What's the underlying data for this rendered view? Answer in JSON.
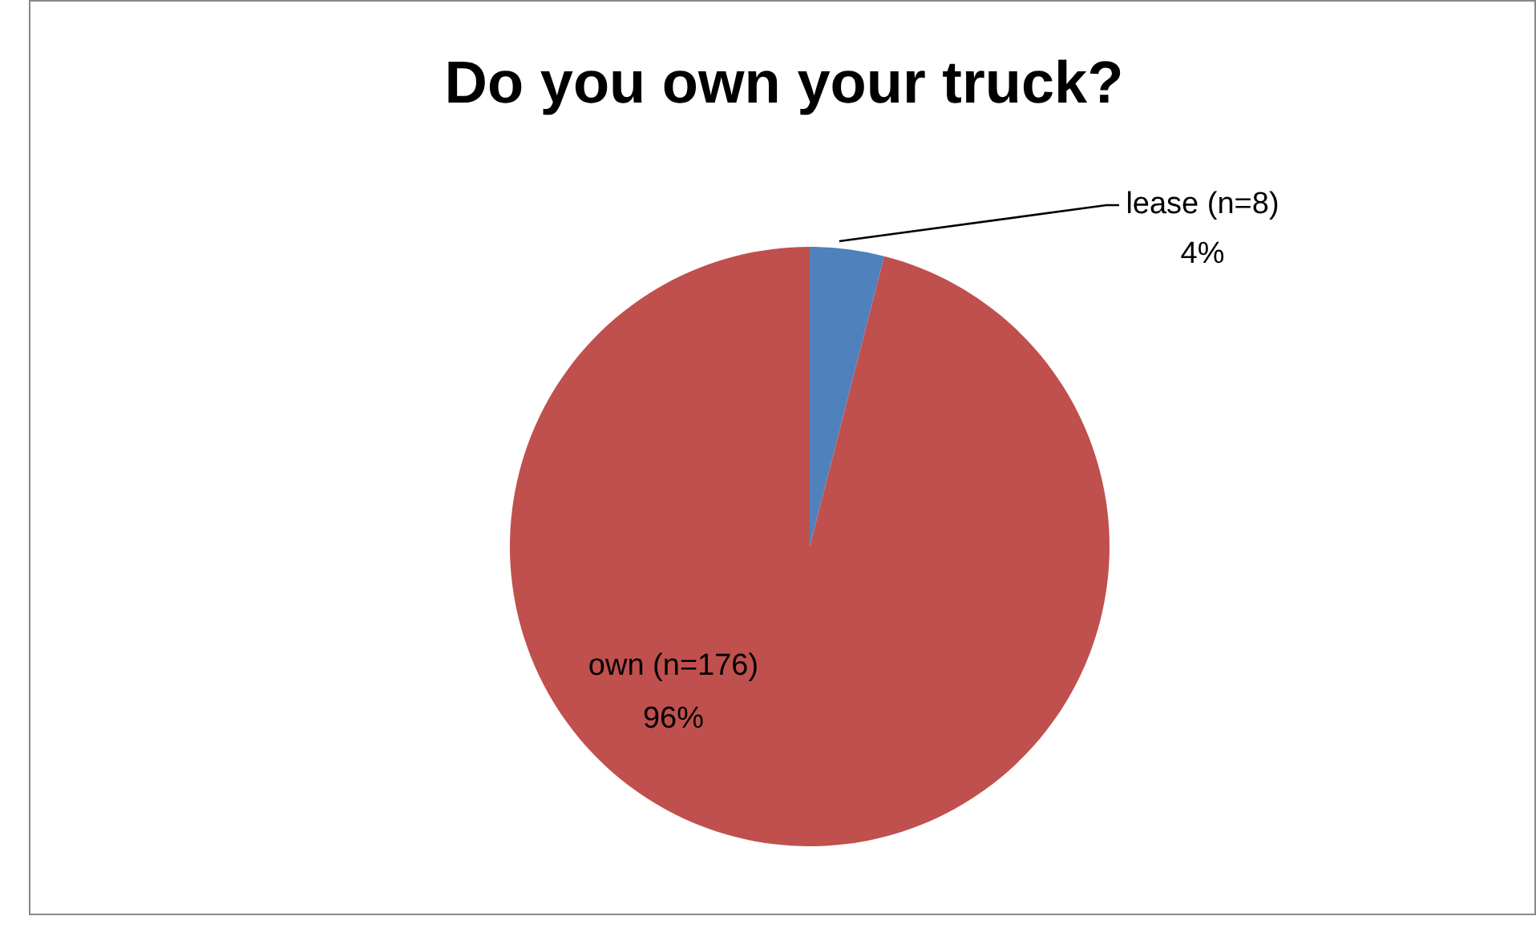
{
  "chart_data": {
    "type": "pie",
    "title": "Do you own your truck?",
    "categories": [
      "lease (n=8)",
      "own (n=176)"
    ],
    "values": [
      4,
      96
    ],
    "value_labels": [
      "4%",
      "96%"
    ],
    "colors": [
      "#4f81bd",
      "#c0504d"
    ]
  }
}
